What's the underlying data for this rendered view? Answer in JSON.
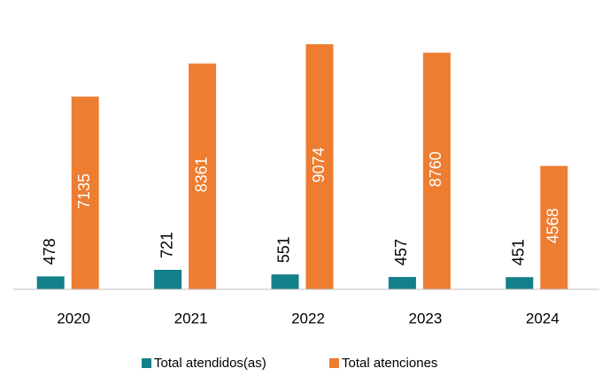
{
  "chart_data": {
    "type": "bar",
    "categories": [
      "2020",
      "2021",
      "2022",
      "2023",
      "2024"
    ],
    "series": [
      {
        "name": "Total atendidos(as)",
        "color": "#13808a",
        "values": [
          478,
          721,
          551,
          457,
          451
        ]
      },
      {
        "name": "Total atenciones",
        "color": "#ed7d31",
        "values": [
          7135,
          8361,
          9074,
          8760,
          4568
        ]
      }
    ],
    "legend": "bottom"
  }
}
